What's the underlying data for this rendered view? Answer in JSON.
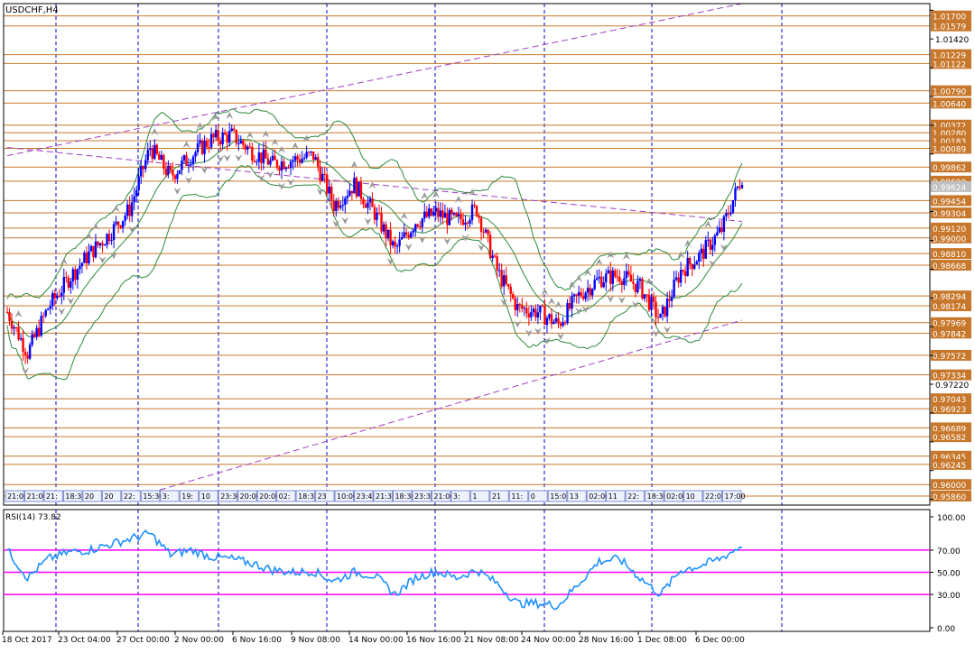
{
  "window_title": "USDCHF,H4",
  "colors": {
    "background": "#ffffff",
    "frame": "#000000",
    "grid": "#0000cc",
    "level_line": "#c8782c",
    "price_label_bg": "#c8782c",
    "price_label_text": "#ffffff",
    "bull": "#0000ff",
    "bear": "#ff0000",
    "bands": "#2e8b3d",
    "trendline": "#a040c0",
    "fractal": "#9a9a9a",
    "rsi_line": "#1e90ff",
    "rsi_level": "#ff00ff",
    "tick_text": "#000000"
  },
  "price_axis_ticks": [
    "1.01770",
    "1.01420",
    "1.01070",
    "1.00720",
    "1.00370",
    "1.00020",
    "0.99670",
    "0.99320",
    "0.98970",
    "0.98620",
    "0.98270",
    "0.97920",
    "0.97570",
    "0.97220",
    "0.96870",
    "0.96520",
    "0.96170",
    "0.95820"
  ],
  "price_levels": [
    "1.01700",
    "1.01579",
    "1.01229",
    "1.01122",
    "1.00790",
    "1.00640",
    "1.00372",
    "1.00280",
    "1.00183",
    "1.00089",
    "0.99862",
    "0.99690",
    "0.99454",
    "0.99304",
    "0.99120",
    "0.99000",
    "0.98810",
    "0.98668",
    "0.98294",
    "0.98174",
    "0.97969",
    "0.97842",
    "0.97572",
    "0.97334",
    "0.97043",
    "0.96923",
    "0.96689",
    "0.96582",
    "0.96345",
    "0.96245",
    "0.96000",
    "0.95860"
  ],
  "current_price": "0.99624",
  "time_tags": [
    "21:00",
    "21:00",
    "21:",
    "18:3",
    "20",
    "20",
    "22:",
    "15:30",
    "3:",
    "19:",
    "10",
    "23:30",
    "20:00",
    "20:00",
    "02:",
    "18:3",
    "23",
    "10:00",
    "23:45",
    "21:3",
    "18:30",
    "23:35",
    "21:00",
    "3:",
    "1",
    "21",
    "11:",
    "0",
    "15:0",
    "13",
    "02:00",
    "11",
    "22:",
    "18:30",
    "02:00",
    "10",
    "22:0",
    "17:00"
  ],
  "rsi": {
    "label": "RSI(14) 73.82",
    "axis_ticks": [
      "100.00",
      "70.00",
      "50.00",
      "30.00",
      "0.00"
    ],
    "levels": [
      70,
      50,
      30
    ]
  },
  "time_axis": [
    "18 Oct 2017",
    "23 Oct 04:00",
    "27 Oct 00:00",
    "2 Nov 00:00",
    "6 Nov 16:00",
    "9 Nov 08:00",
    "14 Nov 00:00",
    "16 Nov 16:00",
    "21 Nov 08:00",
    "24 Nov 00:00",
    "28 Nov 16:00",
    "1 Dec 08:00",
    "6 Dec 00:00"
  ],
  "chart_data": [
    {
      "type": "candlestick",
      "title": "USDCHF,H4",
      "ylim": [
        0.9575,
        1.0185
      ],
      "close_path": {
        "x": [
          "18 Oct 2017",
          "19 Oct",
          "20 Oct",
          "23 Oct 04:00",
          "24 Oct",
          "25 Oct",
          "26 Oct",
          "27 Oct 00:00",
          "30 Oct",
          "31 Oct",
          "1 Nov",
          "2 Nov 00:00",
          "3 Nov",
          "6 Nov 16:00",
          "7 Nov",
          "8 Nov",
          "9 Nov 08:00",
          "10 Nov",
          "13 Nov",
          "14 Nov 00:00",
          "15 Nov",
          "16 Nov 16:00",
          "17 Nov",
          "20 Nov",
          "21 Nov 08:00",
          "22 Nov",
          "23 Nov",
          "24 Nov 00:00",
          "27 Nov",
          "28 Nov 16:00",
          "29 Nov",
          "30 Nov",
          "1 Dec 08:00",
          "4 Dec",
          "5 Dec",
          "6 Dec 00:00",
          "7 Dec"
        ],
        "y": [
          0.981,
          0.976,
          0.9815,
          0.985,
          0.988,
          0.9905,
          0.9935,
          1.001,
          0.9975,
          1.0,
          1.002,
          1.0025,
          1.0005,
          0.999,
          0.9995,
          1.0,
          0.994,
          0.9965,
          0.993,
          0.9885,
          0.992,
          0.993,
          0.992,
          0.9935,
          0.986,
          0.9815,
          0.981,
          0.9795,
          0.983,
          0.985,
          0.9855,
          0.984,
          0.98,
          0.986,
          0.988,
          0.991,
          0.9975
        ]
      },
      "upper_channel_line": {
        "x": [
          "18 Oct 2017",
          "7 Dec"
        ],
        "y": [
          1.0,
          1.0185
        ]
      },
      "lower_channel_line": {
        "x": [
          "27 Oct 00:00",
          "7 Dec"
        ],
        "y": [
          0.959,
          0.98
        ]
      },
      "descending_line": {
        "x": [
          "18 Oct 2017",
          "7 Dec"
        ],
        "y": [
          1.001,
          0.992
        ]
      }
    },
    {
      "type": "line",
      "title": "RSI(14) 73.82",
      "ylim": [
        0,
        100
      ],
      "horizontal_levels": [
        70,
        50,
        30
      ],
      "series": [
        {
          "name": "RSI(14)",
          "x": [
            "18 Oct 2017",
            "19 Oct",
            "20 Oct",
            "23 Oct 04:00",
            "24 Oct",
            "25 Oct",
            "26 Oct",
            "27 Oct 00:00",
            "30 Oct",
            "31 Oct",
            "1 Nov",
            "2 Nov 00:00",
            "3 Nov",
            "6 Nov 16:00",
            "7 Nov",
            "8 Nov",
            "9 Nov 08:00",
            "10 Nov",
            "13 Nov",
            "14 Nov 00:00",
            "15 Nov",
            "16 Nov 16:00",
            "17 Nov",
            "20 Nov",
            "21 Nov 08:00",
            "22 Nov",
            "23 Nov",
            "24 Nov 00:00",
            "27 Nov",
            "28 Nov 16:00",
            "29 Nov",
            "30 Nov",
            "1 Dec 08:00",
            "4 Dec",
            "5 Dec",
            "6 Dec 00:00",
            "7 Dec"
          ],
          "values": [
            70,
            45,
            62,
            68,
            70,
            75,
            80,
            85,
            66,
            70,
            64,
            62,
            58,
            52,
            50,
            51,
            42,
            50,
            47,
            30,
            45,
            51,
            45,
            52,
            40,
            22,
            22,
            20,
            40,
            60,
            62,
            45,
            30,
            52,
            56,
            63,
            74
          ]
        }
      ]
    }
  ]
}
